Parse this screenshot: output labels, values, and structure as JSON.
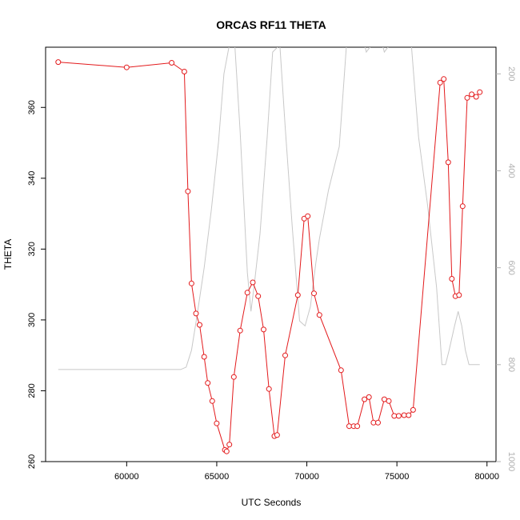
{
  "chart_data": {
    "type": "line",
    "title": "ORCAS RF11 THETA",
    "xlabel": "UTC Seconds",
    "ylabel": "THETA",
    "xlim": [
      55500,
      80500
    ],
    "ylim": [
      260,
      377
    ],
    "x_ticks": [
      60000,
      65000,
      70000,
      75000,
      80000
    ],
    "y_ticks": [
      260,
      280,
      300,
      320,
      340,
      360
    ],
    "secondary_axis": {
      "side": "right",
      "color": "#b0b0b0",
      "reversed": true,
      "ticks": [
        200,
        400,
        600,
        800,
        1000
      ],
      "ylim": [
        1000,
        145
      ]
    },
    "series": [
      {
        "color": "#e31a1c",
        "marker": "open-circle",
        "x": [
          56200,
          60000,
          62500,
          63200,
          63400,
          63600,
          63850,
          64050,
          64300,
          64500,
          64750,
          65000,
          65450,
          65550,
          65700,
          65950,
          66300,
          66700,
          67000,
          67300,
          67600,
          67900,
          68200,
          68350,
          68800,
          69500,
          69850,
          70050,
          70400,
          70700,
          71900,
          72350,
          72600,
          72800,
          73200,
          73450,
          73700,
          73950,
          74300,
          74550,
          74850,
          75100,
          75400,
          75650,
          75900,
          77400,
          77600,
          77850,
          78050,
          78250,
          78450,
          78650,
          78900,
          79150,
          79400,
          79600
        ],
        "y": [
          372.8,
          371.3,
          372.6,
          370.1,
          336.3,
          310.3,
          301.8,
          298.6,
          289.6,
          282.2,
          277.1,
          270.8,
          263.3,
          262.9,
          264.8,
          283.9,
          297.0,
          307.7,
          310.6,
          306.7,
          297.3,
          280.5,
          267.2,
          267.5,
          290.0,
          307.0,
          328.6,
          329.3,
          307.5,
          301.4,
          285.8,
          270.0,
          270.0,
          270.0,
          277.6,
          278.2,
          271.0,
          271.0,
          277.6,
          277.1,
          272.9,
          272.9,
          273.1,
          273.1,
          274.6,
          367.0,
          368.0,
          344.5,
          311.6,
          306.7,
          307.0,
          332.1,
          362.7,
          363.7,
          363.0,
          364.3
        ]
      },
      {
        "color": "#c8c8c8",
        "axis": "right",
        "x": [
          56200,
          63000,
          63300,
          63600,
          63900,
          64300,
          64700,
          65100,
          65400,
          65700,
          66000,
          66300,
          66700,
          66900,
          67100,
          67400,
          67800,
          68100,
          68500,
          68800,
          69200,
          69600,
          69900,
          70200,
          70500,
          70700,
          71200,
          71800,
          72200,
          72500,
          73200,
          73300,
          73600,
          74200,
          74300,
          74600,
          75200,
          75800,
          76200,
          76700,
          77200,
          77500,
          77700,
          77900,
          78200,
          78400,
          78600,
          78800,
          79000,
          79300,
          79600
        ],
        "y": [
          810,
          810,
          805,
          770,
          700,
          600,
          480,
          340,
          200,
          140,
          140,
          320,
          610,
          690,
          630,
          530,
          330,
          155,
          140,
          310,
          520,
          710,
          720,
          680,
          590,
          540,
          440,
          350,
          140,
          140,
          140,
          155,
          140,
          140,
          155,
          140,
          140,
          140,
          330,
          470,
          640,
          800,
          800,
          770,
          720,
          690,
          720,
          770,
          800,
          800,
          800
        ]
      }
    ]
  }
}
